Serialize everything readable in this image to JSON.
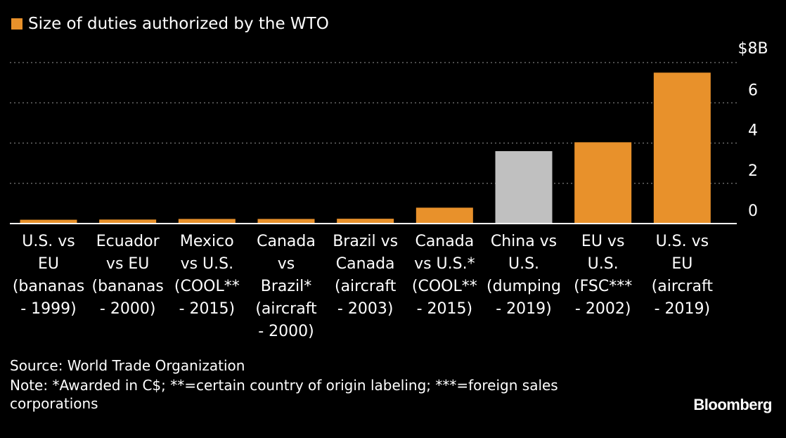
{
  "legend": {
    "label": "Size of duties authorized by the WTO",
    "color": "#e8912b"
  },
  "chart_data": {
    "type": "bar",
    "categories": [
      [
        "U.S. vs",
        "EU",
        "(bananas",
        "- 1999)"
      ],
      [
        "Ecuador",
        "vs EU",
        "(bananas",
        "- 2000)"
      ],
      [
        "Mexico",
        "vs U.S.",
        "(COOL**",
        "- 2015)"
      ],
      [
        "Canada",
        "vs",
        "Brazil*",
        "(aircraft",
        "- 2000)"
      ],
      [
        "Brazil vs",
        "Canada",
        "(aircraft",
        "- 2003)"
      ],
      [
        "Canada",
        "vs U.S.*",
        "(COOL**",
        "- 2015)"
      ],
      [
        "China vs",
        "U.S.",
        "(dumping",
        "- 2019)"
      ],
      [
        "EU vs",
        "U.S.",
        "(FSC***",
        "- 2002)"
      ],
      [
        "U.S. vs",
        "EU",
        "(aircraft",
        "- 2019)"
      ]
    ],
    "series": [
      {
        "name": "Size of duties authorized by the WTO",
        "values": [
          0.19,
          0.2,
          0.23,
          0.23,
          0.24,
          0.79,
          3.6,
          4.04,
          7.5
        ]
      }
    ],
    "bar_colors": [
      "#e8912b",
      "#e8912b",
      "#e8912b",
      "#e8912b",
      "#e8912b",
      "#e8912b",
      "#c0c0c0",
      "#e8912b",
      "#e8912b"
    ],
    "ylim": [
      0,
      8
    ],
    "yticks": [
      "0",
      "2",
      "4",
      "6",
      "$8B"
    ],
    "ytick_values": [
      0,
      2,
      4,
      6,
      8
    ],
    "grid": true,
    "y_axis_side": "right"
  },
  "footer": {
    "source": "Source: World Trade Organization",
    "note_line1": "Note: *Awarded in C$; **=certain country of origin labeling; ***=foreign sales",
    "note_line2": "corporations"
  },
  "brand": "Bloomberg"
}
